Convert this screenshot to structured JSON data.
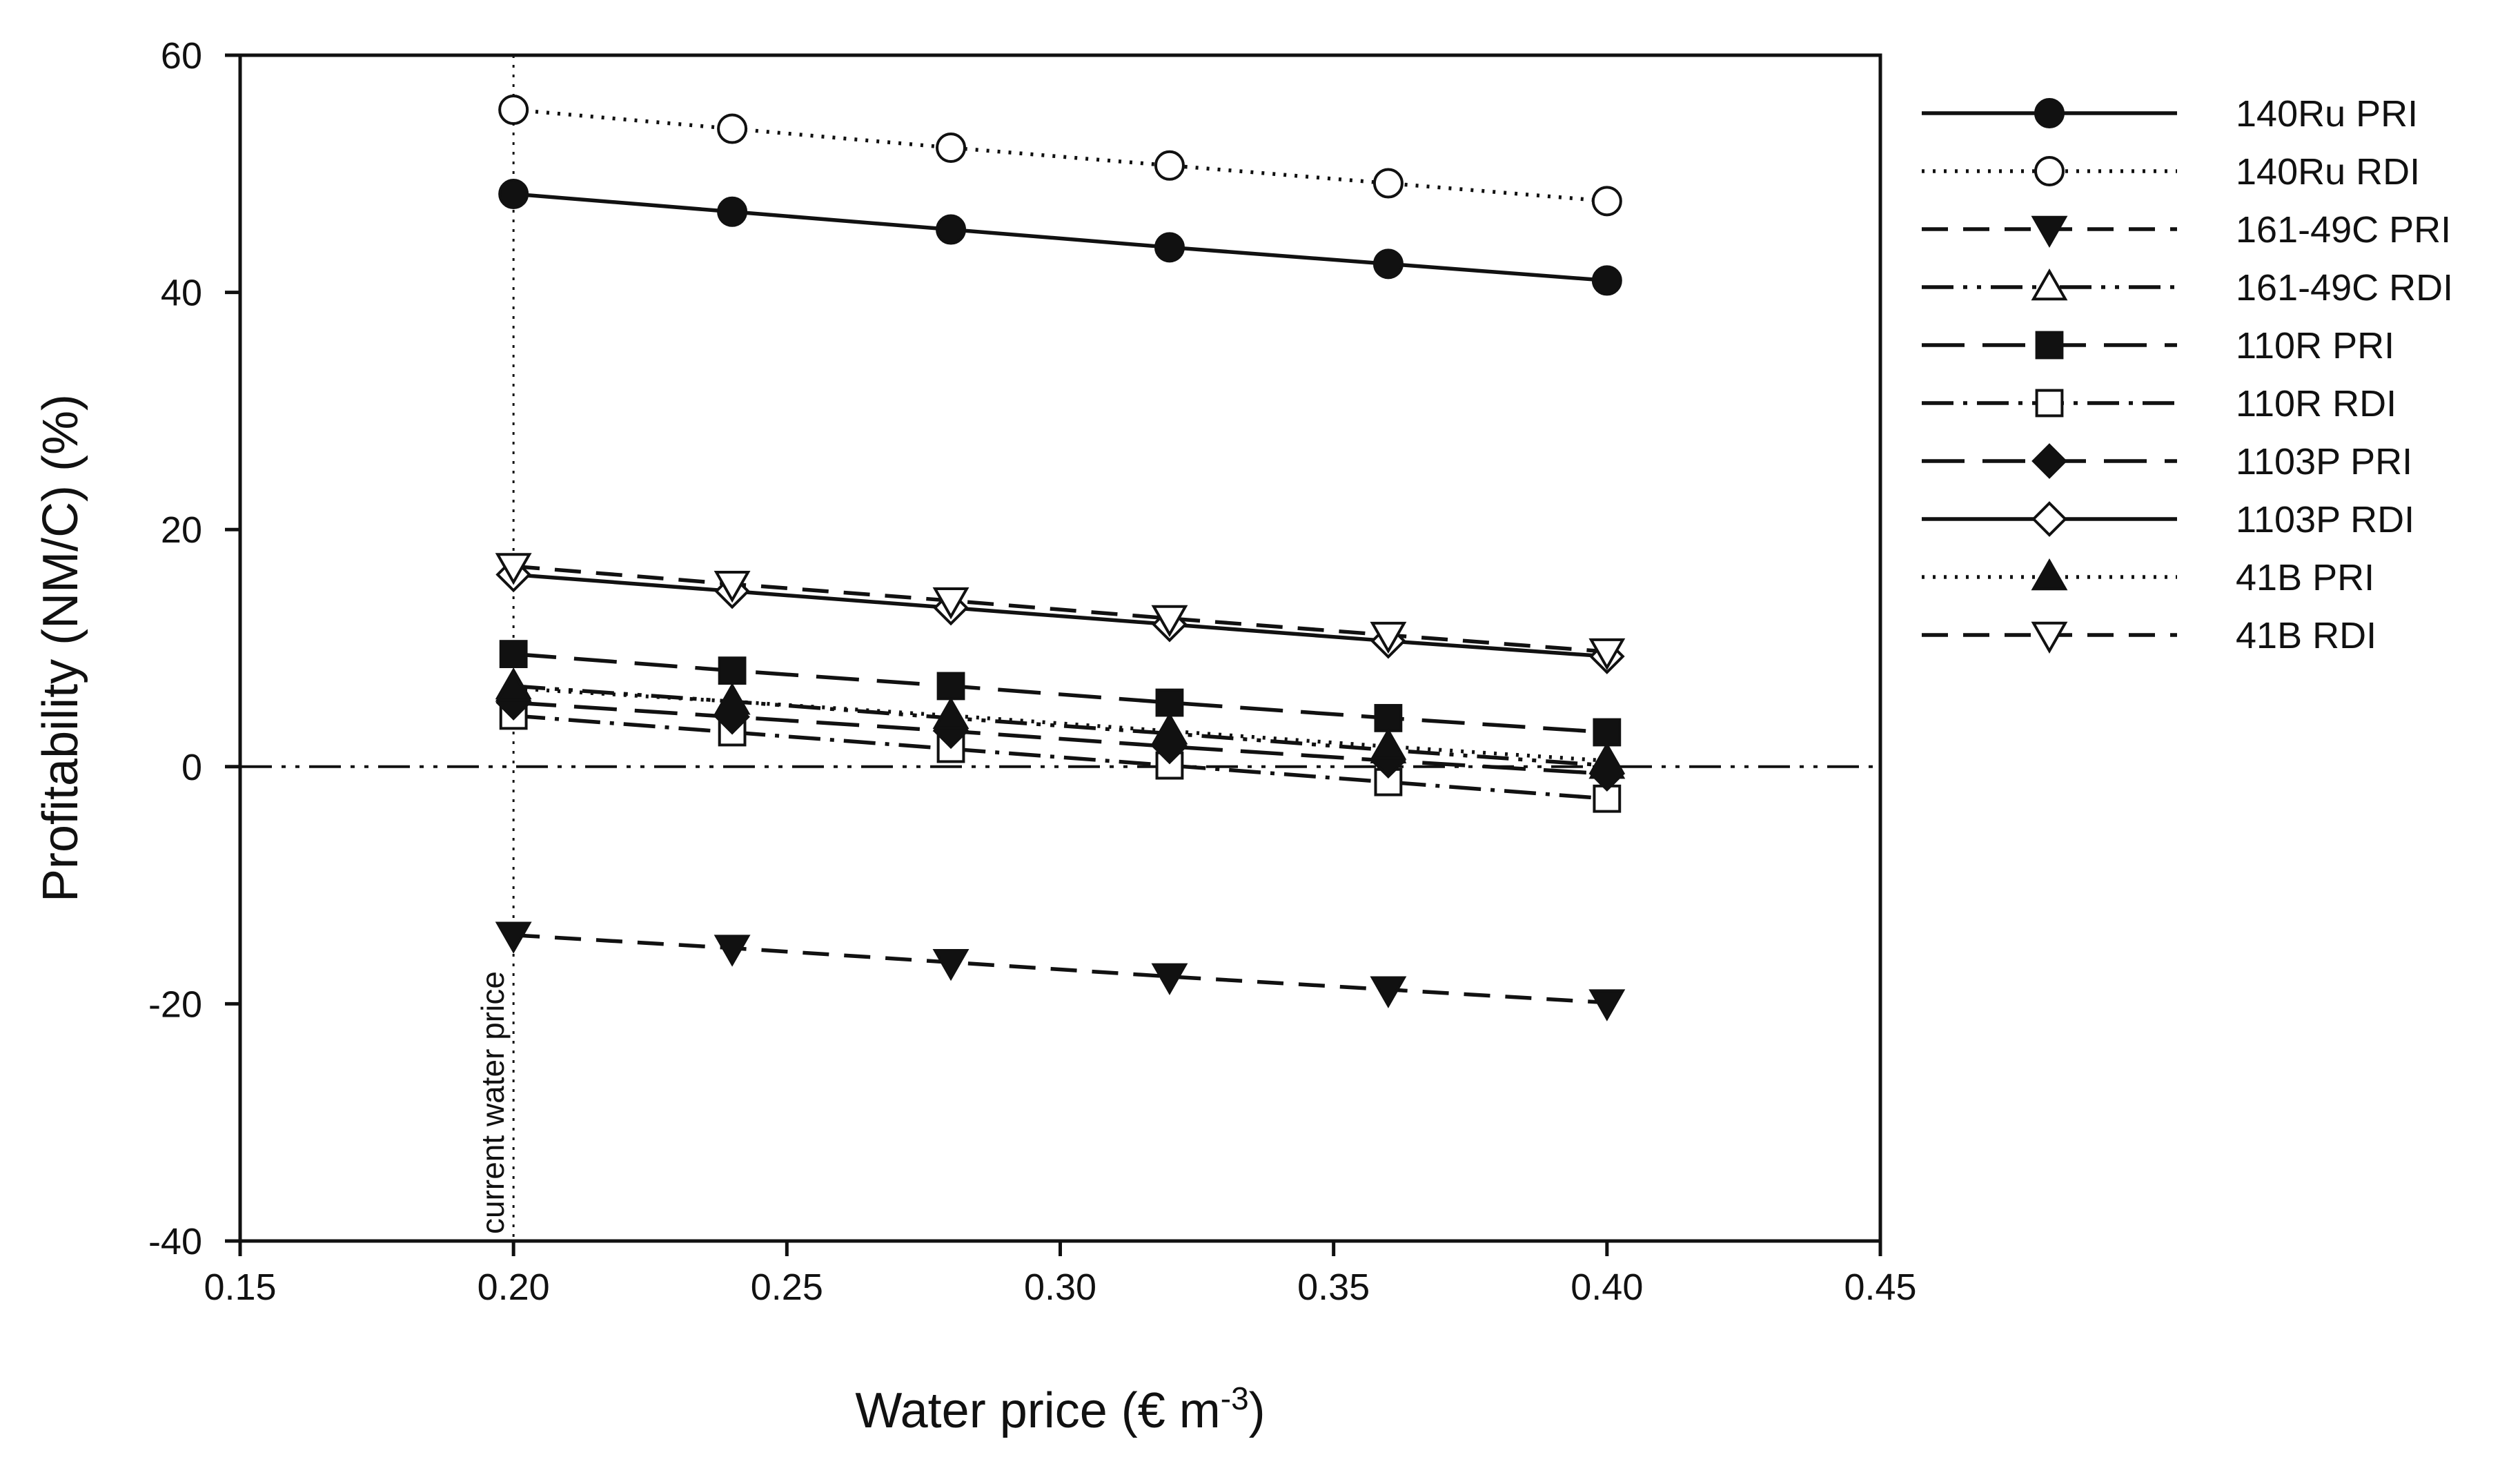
{
  "chart_data": {
    "type": "line",
    "title": "",
    "xlabel": "Water price (€ m",
    "xlabel_sup": "-3",
    "xlabel_suffix": ")",
    "ylabel": "Profitability (NM/C) (%)",
    "xlim": [
      0.15,
      0.45
    ],
    "ylim": [
      -40,
      60
    ],
    "xticks": [
      0.15,
      0.2,
      0.25,
      0.3,
      0.35,
      0.4,
      0.45
    ],
    "xtick_labels": [
      "0.15",
      "0.20",
      "0.25",
      "0.30",
      "0.35",
      "0.40",
      "0.45"
    ],
    "yticks": [
      -40,
      -20,
      0,
      20,
      40,
      60
    ],
    "ytick_labels": [
      "-40",
      "-20",
      "0",
      "20",
      "40",
      "60"
    ],
    "grid": false,
    "legend_position": "right",
    "x": [
      0.2,
      0.24,
      0.28,
      0.32,
      0.36,
      0.4
    ],
    "reference_lines": [
      {
        "orientation": "vertical",
        "x": 0.2,
        "style": "dotted",
        "label": "current water price"
      },
      {
        "orientation": "horizontal",
        "y": 0,
        "style": "dash-dot-dot"
      }
    ],
    "series": [
      {
        "name": "140Ru PRI",
        "marker": "circle",
        "filled": true,
        "dash": "solid",
        "values": [
          48.3,
          46.8,
          45.3,
          43.8,
          42.4,
          41.0
        ]
      },
      {
        "name": "140Ru RDI",
        "marker": "circle",
        "filled": false,
        "dash": "dotted",
        "values": [
          55.4,
          53.8,
          52.2,
          50.7,
          49.2,
          47.7
        ]
      },
      {
        "name": "161-49C PRI",
        "marker": "triangle-down",
        "filled": true,
        "dash": "dashed",
        "values": [
          -14.2,
          -15.3,
          -16.5,
          -17.7,
          -18.8,
          -19.9
        ]
      },
      {
        "name": "161-49C RDI",
        "marker": "triangle-up",
        "filled": false,
        "dash": "dash-dot-dot",
        "values": [
          6.8,
          5.5,
          4.1,
          2.8,
          1.4,
          0.1
        ]
      },
      {
        "name": "110R PRI",
        "marker": "square",
        "filled": true,
        "dash": "long-dash",
        "values": [
          9.5,
          8.1,
          6.8,
          5.4,
          4.1,
          2.9
        ]
      },
      {
        "name": "110R RDI",
        "marker": "square",
        "filled": false,
        "dash": "dash-dot",
        "values": [
          4.3,
          2.9,
          1.5,
          0.1,
          -1.3,
          -2.7
        ]
      },
      {
        "name": "1103P PRI",
        "marker": "diamond",
        "filled": true,
        "dash": "long-dash",
        "values": [
          5.4,
          4.2,
          3.0,
          1.7,
          0.5,
          -0.6
        ]
      },
      {
        "name": "1103P RDI",
        "marker": "diamond",
        "filled": false,
        "dash": "solid",
        "values": [
          16.2,
          14.8,
          13.4,
          12.0,
          10.6,
          9.3
        ]
      },
      {
        "name": "41B PRI",
        "marker": "triangle-up",
        "filled": true,
        "dash": "dotted",
        "values": [
          6.6,
          5.5,
          4.3,
          3.0,
          1.7,
          0.5
        ]
      },
      {
        "name": "41B RDI",
        "marker": "triangle-down",
        "filled": false,
        "dash": "dashed",
        "values": [
          16.9,
          15.4,
          14.0,
          12.5,
          11.1,
          9.7
        ]
      }
    ]
  }
}
